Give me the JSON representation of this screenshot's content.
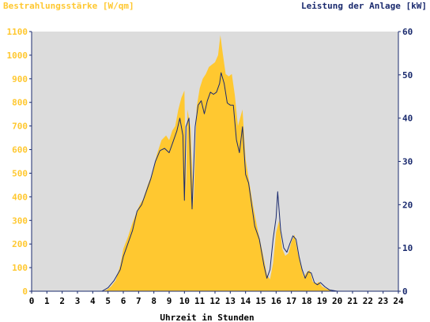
{
  "chart_data": {
    "type": "area",
    "left_title": "Bestrahlungsstärke [W/qm]",
    "right_title": "Leistung der Anlage [kW]",
    "xlabel": "Uhrzeit in Stunden",
    "xlim": [
      0,
      24
    ],
    "x_ticks": [
      "0",
      "1",
      "2",
      "3",
      "4",
      "5",
      "6",
      "7",
      "8",
      "9",
      "10",
      "11",
      "12",
      "13",
      "14",
      "15",
      "16",
      "17",
      "18",
      "19",
      "20",
      "21",
      "22",
      "23",
      "24"
    ],
    "ylim_left": [
      0,
      1100
    ],
    "y_ticks_left": [
      "0",
      "100",
      "200",
      "300",
      "400",
      "500",
      "600",
      "700",
      "800",
      "900",
      "1000",
      "1100"
    ],
    "ylim_right": [
      0,
      60
    ],
    "y_ticks_right": [
      "0",
      "10",
      "20",
      "30",
      "40",
      "50",
      "60"
    ],
    "grid": false,
    "colors": {
      "irradiance": "#ffc830",
      "power": "#1a2a6e",
      "plot_bg": "#dcdcdc",
      "axis": "#1a2a6e"
    },
    "series": [
      {
        "axis": "left",
        "style": "area",
        "points": [
          [
            0,
            0
          ],
          [
            4.6,
            0
          ],
          [
            4.9,
            5
          ],
          [
            5.2,
            20
          ],
          [
            5.5,
            45
          ],
          [
            5.8,
            110
          ],
          [
            6.0,
            180
          ],
          [
            6.3,
            230
          ],
          [
            6.6,
            290
          ],
          [
            6.9,
            340
          ],
          [
            7.1,
            370
          ],
          [
            7.3,
            390
          ],
          [
            7.6,
            450
          ],
          [
            7.9,
            500
          ],
          [
            8.2,
            580
          ],
          [
            8.5,
            640
          ],
          [
            8.8,
            660
          ],
          [
            9.0,
            640
          ],
          [
            9.2,
            680
          ],
          [
            9.4,
            700
          ],
          [
            9.6,
            770
          ],
          [
            9.8,
            820
          ],
          [
            10.0,
            850
          ],
          [
            10.1,
            420
          ],
          [
            10.2,
            770
          ],
          [
            10.4,
            690
          ],
          [
            10.6,
            360
          ],
          [
            10.8,
            780
          ],
          [
            11.0,
            860
          ],
          [
            11.2,
            900
          ],
          [
            11.4,
            920
          ],
          [
            11.6,
            950
          ],
          [
            11.8,
            960
          ],
          [
            12.0,
            970
          ],
          [
            12.2,
            1000
          ],
          [
            12.35,
            1085
          ],
          [
            12.5,
            1010
          ],
          [
            12.7,
            920
          ],
          [
            12.9,
            910
          ],
          [
            13.1,
            920
          ],
          [
            13.3,
            830
          ],
          [
            13.5,
            700
          ],
          [
            13.8,
            770
          ],
          [
            14.0,
            560
          ],
          [
            14.2,
            480
          ],
          [
            14.5,
            360
          ],
          [
            14.8,
            260
          ],
          [
            15.1,
            170
          ],
          [
            15.4,
            70
          ],
          [
            15.6,
            50
          ],
          [
            15.8,
            120
          ],
          [
            16.0,
            250
          ],
          [
            16.2,
            300
          ],
          [
            16.4,
            180
          ],
          [
            16.6,
            150
          ],
          [
            16.8,
            160
          ],
          [
            17.0,
            210
          ],
          [
            17.2,
            240
          ],
          [
            17.4,
            170
          ],
          [
            17.6,
            110
          ],
          [
            17.8,
            60
          ],
          [
            18.0,
            80
          ],
          [
            18.2,
            90
          ],
          [
            18.4,
            40
          ],
          [
            18.6,
            30
          ],
          [
            18.8,
            40
          ],
          [
            19.0,
            20
          ],
          [
            19.3,
            10
          ],
          [
            19.6,
            2
          ],
          [
            20.0,
            0
          ],
          [
            24,
            0
          ]
        ]
      },
      {
        "axis": "right",
        "style": "line",
        "points": [
          [
            0,
            0
          ],
          [
            4.6,
            0
          ],
          [
            5.0,
            0.8
          ],
          [
            5.4,
            2.5
          ],
          [
            5.8,
            5
          ],
          [
            6.0,
            8
          ],
          [
            6.3,
            11
          ],
          [
            6.6,
            14
          ],
          [
            6.9,
            18.5
          ],
          [
            7.2,
            20
          ],
          [
            7.5,
            23
          ],
          [
            7.8,
            26
          ],
          [
            8.1,
            30
          ],
          [
            8.4,
            32.5
          ],
          [
            8.7,
            33
          ],
          [
            9.0,
            32
          ],
          [
            9.2,
            34
          ],
          [
            9.5,
            37
          ],
          [
            9.7,
            40
          ],
          [
            9.9,
            36
          ],
          [
            10.0,
            21
          ],
          [
            10.1,
            38
          ],
          [
            10.3,
            40
          ],
          [
            10.5,
            19
          ],
          [
            10.7,
            38
          ],
          [
            10.9,
            43
          ],
          [
            11.1,
            44
          ],
          [
            11.3,
            41
          ],
          [
            11.5,
            44
          ],
          [
            11.7,
            46
          ],
          [
            11.9,
            45.5
          ],
          [
            12.1,
            46
          ],
          [
            12.3,
            48
          ],
          [
            12.4,
            50.5
          ],
          [
            12.6,
            48
          ],
          [
            12.8,
            43.5
          ],
          [
            13.0,
            43
          ],
          [
            13.2,
            43
          ],
          [
            13.4,
            35
          ],
          [
            13.6,
            32
          ],
          [
            13.8,
            38
          ],
          [
            14.0,
            27
          ],
          [
            14.2,
            25
          ],
          [
            14.4,
            20
          ],
          [
            14.6,
            15
          ],
          [
            14.9,
            12
          ],
          [
            15.2,
            6
          ],
          [
            15.4,
            3
          ],
          [
            15.6,
            5
          ],
          [
            15.8,
            12
          ],
          [
            16.0,
            17
          ],
          [
            16.1,
            23
          ],
          [
            16.3,
            14
          ],
          [
            16.5,
            10
          ],
          [
            16.7,
            9
          ],
          [
            16.9,
            11
          ],
          [
            17.1,
            12.8
          ],
          [
            17.3,
            12
          ],
          [
            17.5,
            8
          ],
          [
            17.7,
            5
          ],
          [
            17.9,
            3
          ],
          [
            18.1,
            4.5
          ],
          [
            18.3,
            4.2
          ],
          [
            18.5,
            2
          ],
          [
            18.7,
            1.5
          ],
          [
            18.9,
            2
          ],
          [
            19.2,
            1
          ],
          [
            19.5,
            0.3
          ],
          [
            20.0,
            0
          ],
          [
            24,
            0
          ]
        ]
      }
    ]
  }
}
